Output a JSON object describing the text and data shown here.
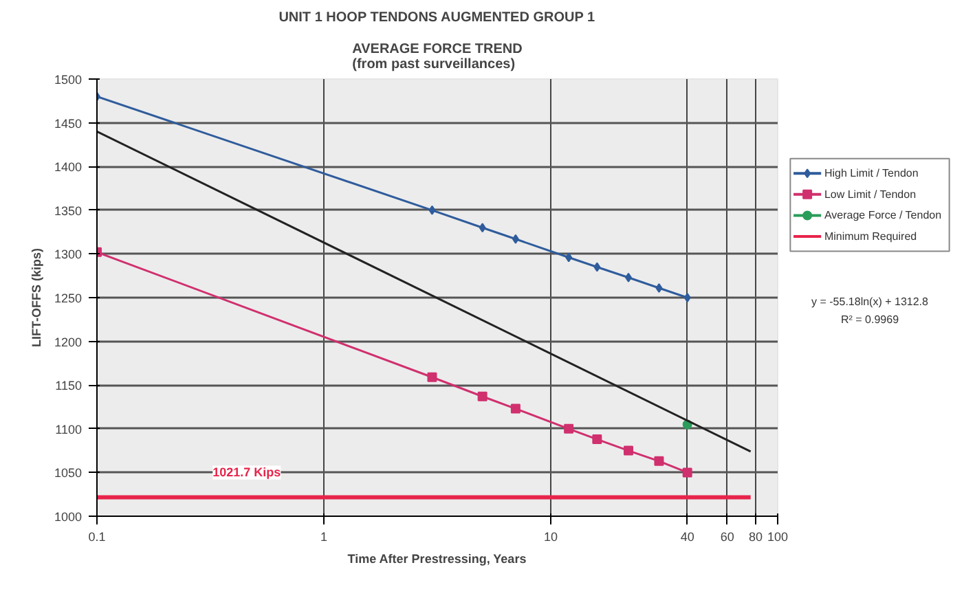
{
  "chart_data": {
    "type": "line",
    "title": "UNIT 1 HOOP TENDONS AUGMENTED GROUP 1",
    "subtitle": "AVERAGE FORCE TREND\n(from past surveillances)",
    "xlabel": "Time After Prestressing, Years",
    "ylabel": "LIFT-OFFS (kips)",
    "log": "x",
    "grid": true,
    "legend": "right",
    "xlim": [
      0.1,
      100
    ],
    "xticks": [
      0.1,
      1,
      10,
      40,
      60,
      80,
      100
    ],
    "ylim": [
      1000,
      1500
    ],
    "yticks": [
      1000,
      1050,
      1100,
      1150,
      1200,
      1250,
      1300,
      1350,
      1400,
      1450,
      1500
    ],
    "series": [
      {
        "name": "High Limit / Tendon",
        "color": "#2f5c9c",
        "marker": "diamond",
        "x": [
          0.1,
          3,
          5,
          7,
          12,
          16,
          22,
          30,
          40
        ],
        "values": [
          1480,
          1350,
          1330,
          1317,
          1296,
          1285,
          1273,
          1261,
          1250
        ]
      },
      {
        "name": "Low Limit / Tendon",
        "color": "#d0306e",
        "marker": "square",
        "x": [
          0.1,
          3,
          5,
          7,
          12,
          16,
          22,
          30,
          40
        ],
        "values": [
          1302,
          1159,
          1137,
          1123,
          1100,
          1088,
          1075,
          1063,
          1050
        ]
      },
      {
        "name": "Average Force / Tendon",
        "color": "#2a9d5a",
        "marker": "circle",
        "x": [
          40
        ],
        "values": [
          1105
        ]
      },
      {
        "name": "Minimum Required",
        "color": "#e8244a",
        "marker": "none",
        "x": [
          0.1,
          76
        ],
        "values": [
          1021.7,
          1021.7
        ]
      },
      {
        "color": "#222222",
        "marker": "none",
        "x": [
          0.1,
          76
        ],
        "values": [
          1440,
          1074
        ]
      }
    ],
    "annotations": [
      "1021.7 Kips",
      "y = -55.18ln(x) + 1312.8",
      "R² = 0.9969"
    ]
  }
}
